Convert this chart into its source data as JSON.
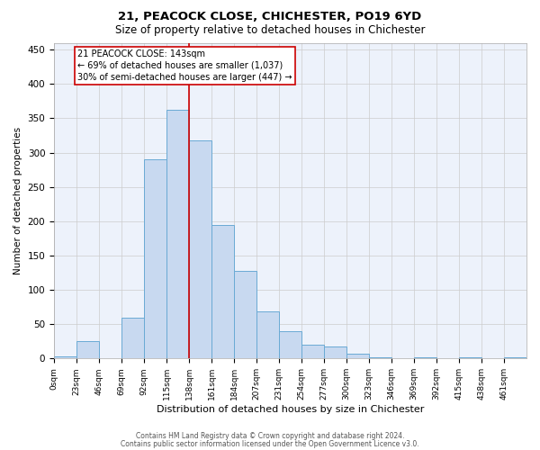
{
  "title1": "21, PEACOCK CLOSE, CHICHESTER, PO19 6YD",
  "title2": "Size of property relative to detached houses in Chichester",
  "xlabel": "Distribution of detached houses by size in Chichester",
  "ylabel": "Number of detached properties",
  "footer1": "Contains HM Land Registry data © Crown copyright and database right 2024.",
  "footer2": "Contains public sector information licensed under the Open Government Licence v3.0.",
  "bin_labels": [
    "0sqm",
    "23sqm",
    "46sqm",
    "69sqm",
    "92sqm",
    "115sqm",
    "138sqm",
    "161sqm",
    "184sqm",
    "207sqm",
    "231sqm",
    "254sqm",
    "277sqm",
    "300sqm",
    "323sqm",
    "346sqm",
    "369sqm",
    "392sqm",
    "415sqm",
    "438sqm",
    "461sqm"
  ],
  "bar_heights": [
    3,
    25,
    0,
    60,
    290,
    362,
    318,
    195,
    127,
    68,
    40,
    20,
    18,
    7,
    2,
    0,
    2,
    0,
    2,
    0,
    2
  ],
  "bar_color": "#c8d9f0",
  "bar_edge_color": "#6aaad4",
  "vline_x": 6,
  "vline_color": "#cc0000",
  "annotation_text": "21 PEACOCK CLOSE: 143sqm\n← 69% of detached houses are smaller (1,037)\n30% of semi-detached houses are larger (447) →",
  "annotation_box_color": "#cc0000",
  "ylim": [
    0,
    460
  ],
  "yticks": [
    0,
    50,
    100,
    150,
    200,
    250,
    300,
    350,
    400,
    450
  ],
  "grid_color": "#cccccc",
  "background_color": "#edf2fb",
  "bin_width": 1,
  "n_bins": 21
}
